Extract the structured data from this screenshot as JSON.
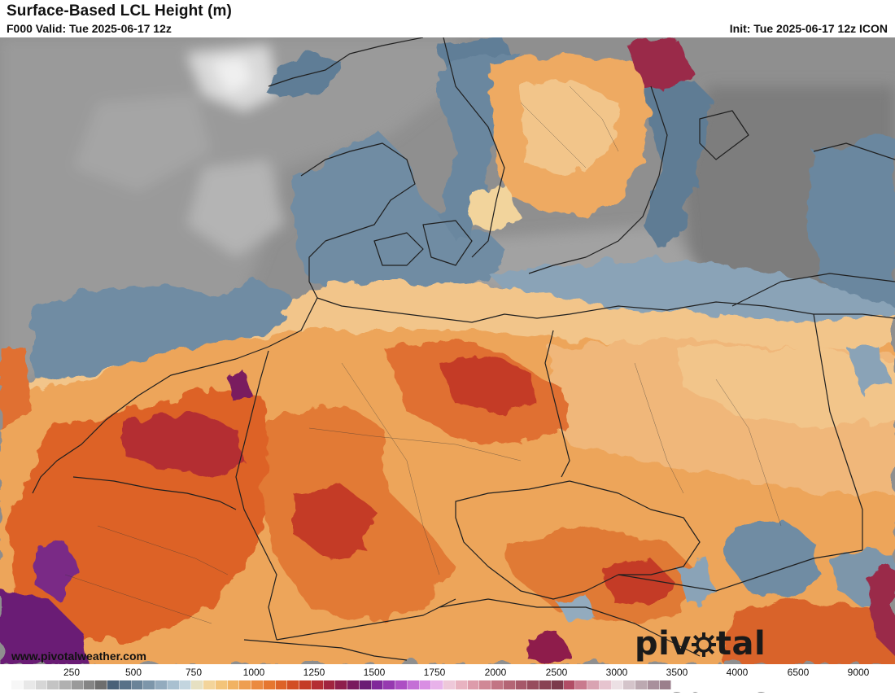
{
  "header": {
    "title": "Surface-Based LCL Height (m)",
    "valid": "F000 Valid: Tue 2025-06-17 12z",
    "init": "Init: Tue 2025-06-17 12z ICON"
  },
  "footer": {
    "url": "www.pivotalweather.com",
    "brand_before": "piv",
    "brand_after": "tal weather"
  },
  "colorbar": {
    "ticks": [
      "250",
      "500",
      "750",
      "1000",
      "1250",
      "1500",
      "1750",
      "2000",
      "2500",
      "3000",
      "3500",
      "4000",
      "6500",
      "9000"
    ],
    "colors": [
      "#f7f7f7",
      "#e8e8e8",
      "#d6d6d6",
      "#c4c4c4",
      "#b0b0b0",
      "#9a9a9a",
      "#858585",
      "#6e6e6e",
      "#4a6178",
      "#587188",
      "#6a8398",
      "#7d96aa",
      "#93abbe",
      "#a9c0d0",
      "#c3d5df",
      "#e6e0c2",
      "#f3d49a",
      "#f3c47a",
      "#f1b262",
      "#ee9e50",
      "#eb8a40",
      "#e6762f",
      "#dd6228",
      "#d24e24",
      "#c43b26",
      "#b42d33",
      "#a1243f",
      "#8e1e4c",
      "#7a1a5e",
      "#6b1d74",
      "#80289a",
      "#9639b0",
      "#ad4fc4",
      "#c46fd6",
      "#d98ee3",
      "#e8b2ea",
      "#eec8d9",
      "#e8b3c1",
      "#dd9cab",
      "#d08896",
      "#c27584",
      "#b46575",
      "#a65869",
      "#974c5d",
      "#894253",
      "#7b3a4b",
      "#b14d65",
      "#c97a8e",
      "#d9a3b2",
      "#e6c4cf",
      "#ece0e4",
      "#d4c4ca",
      "#bca9b1",
      "#a9909c",
      "#9b7f8c"
    ]
  },
  "map": {
    "region": "Central Europe",
    "colors": {
      "ocean_gray": "#8c8c8c",
      "low_blue": "#6f8ca3",
      "mid_peach": "#f2c58a",
      "high_orange": "#e99a4a",
      "very_high_red": "#d9632b",
      "extreme_purple": "#7a2a86",
      "border": "#222222"
    }
  }
}
